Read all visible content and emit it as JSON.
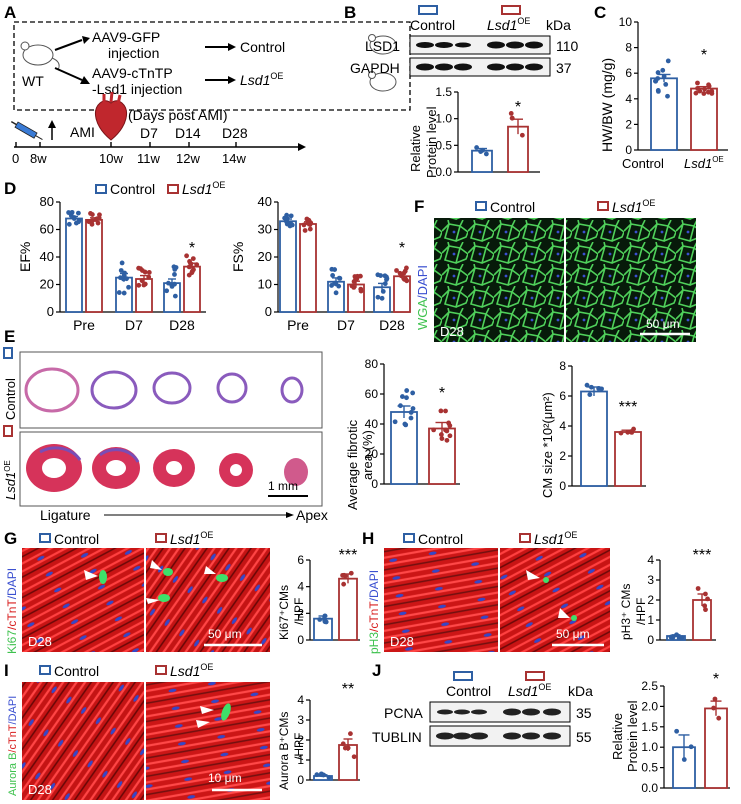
{
  "panels": {
    "A": {
      "letter": "A",
      "wt": "WT",
      "gfp_line1": "AAV9-GFP",
      "gfp_line2": "injection",
      "ctn_line1": "AAV9-cTnTP",
      "ctn_line2": "-Lsd1 injection",
      "control": "Control",
      "lsd1": "Lsd1",
      "oe": "OE",
      "ami": "AMI",
      "days_post": "(Days post AMI)",
      "d7": "D7",
      "d14": "D14",
      "d28": "D28",
      "ticks": [
        "0",
        "8w",
        "10w",
        "11w",
        "12w",
        "14w"
      ]
    },
    "B": {
      "letter": "B",
      "control": "Control",
      "lsd1": "Lsd1",
      "oe": "OE",
      "kda": "kDa",
      "bands": [
        {
          "name": "LSD1",
          "kda": "110"
        },
        {
          "name": "GAPDH",
          "kda": "37"
        }
      ],
      "ylabel1": "Relative",
      "ylabel2": "Protein level",
      "yticks": [
        "0.0",
        "0.5",
        "1.0",
        "1.5"
      ],
      "star": "*"
    },
    "C": {
      "letter": "C",
      "ylabel": "HW/BW (mg/g)",
      "yticks": [
        "0",
        "2",
        "4",
        "6",
        "8",
        "10"
      ],
      "xcats": [
        "Control",
        "Lsd1"
      ],
      "oe": "OE",
      "star": "*"
    },
    "D": {
      "letter": "D",
      "legend_control": "Control",
      "legend_lsd1": "Lsd1",
      "oe": "OE",
      "ef_label": "EF%",
      "fs_label": "FS%",
      "ef_yticks": [
        "0",
        "20",
        "40",
        "60",
        "80"
      ],
      "fs_yticks": [
        "0",
        "10",
        "20",
        "30",
        "40"
      ],
      "xcats": [
        "Pre",
        "D7",
        "D28"
      ],
      "star": "*"
    },
    "E": {
      "letter": "E",
      "row_control": "Control",
      "row_lsd1": "Lsd1",
      "oe": "OE",
      "scale": "1 mm",
      "ligature": "Ligature",
      "apex": "Apex",
      "fib_ylabel1": "Average fibrotic",
      "fib_ylabel2": "area (%)",
      "fib_yticks": [
        "0",
        "20",
        "40",
        "60",
        "80"
      ],
      "star": "*"
    },
    "F": {
      "letter": "F",
      "control": "Control",
      "lsd1": "Lsd1",
      "oe": "OE",
      "wga": "WGA",
      "dapi": "/DAPI",
      "d28": "D28",
      "scale": "50 μm",
      "cm_ylabel": "CM size *10²(μm²)",
      "cm_yticks": [
        "0",
        "2",
        "4",
        "6",
        "8"
      ],
      "stars": "***"
    },
    "G": {
      "letter": "G",
      "control": "Control",
      "lsd1": "Lsd1",
      "oe": "OE",
      "stain_a": "Ki67",
      "stain_b": "/cTnT",
      "stain_c": "/DAPI",
      "d28": "D28",
      "scale": "50 μm",
      "ylabel1": "Ki67⁺CMs",
      "ylabel2": "/HPF",
      "yticks": [
        "0",
        "2",
        "4",
        "6"
      ],
      "stars": "***"
    },
    "H": {
      "letter": "H",
      "control": "Control",
      "lsd1": "Lsd1",
      "oe": "OE",
      "stain_a": "pH3",
      "stain_b": "/cTnT",
      "stain_c": "/DAPI",
      "d28": "D28",
      "scale": "50 μm",
      "ylabel1": "pH3⁺ CMs",
      "ylabel2": "/HPF",
      "yticks": [
        "0",
        "1",
        "2",
        "3",
        "4"
      ],
      "stars": "***"
    },
    "I": {
      "letter": "I",
      "control": "Control",
      "lsd1": "Lsd1",
      "oe": "OE",
      "stain_a": "Aurora B",
      "stain_b": "/cTnT",
      "stain_c": "/DAPI",
      "d28": "D28",
      "scale": "10 μm",
      "ylabel1": "Aurora B⁺CMs",
      "ylabel2": "/HPF",
      "yticks": [
        "0",
        "1",
        "2",
        "3",
        "4"
      ],
      "stars": "**"
    },
    "J": {
      "letter": "J",
      "control": "Control",
      "lsd1": "Lsd1",
      "oe": "OE",
      "kda": "kDa",
      "bands": [
        {
          "name": "PCNA",
          "kda": "35"
        },
        {
          "name": "TUBLIN",
          "kda": "55"
        }
      ],
      "ylabel1": "Relative",
      "ylabel2": "Protein level",
      "yticks": [
        "0.0",
        "0.5",
        "1.0",
        "1.5",
        "2.0",
        "2.5"
      ],
      "star": "*"
    }
  },
  "colors": {
    "control": "#2e5fa3",
    "lsd1": "#a83232",
    "green": "#3ec24e",
    "red": "#d81e1e"
  },
  "chart_data": [
    {
      "type": "bar",
      "title": "",
      "ylabel": "Relative Protein level",
      "categories": [
        "Control",
        "Lsd1 OE"
      ],
      "values": [
        0.4,
        0.85
      ],
      "ylim": [
        0,
        1.5
      ]
    },
    {
      "type": "bar",
      "title": "",
      "ylabel": "HW/BW (mg/g)",
      "categories": [
        "Control",
        "Lsd1 OE"
      ],
      "values": [
        5.6,
        4.8
      ],
      "ylim": [
        0,
        10
      ]
    },
    {
      "type": "bar",
      "ylabel": "EF%",
      "categories": [
        "Pre",
        "D7",
        "D28"
      ],
      "series": [
        {
          "name": "Control",
          "values": [
            68,
            25,
            21
          ]
        },
        {
          "name": "Lsd1 OE",
          "values": [
            67,
            24,
            33
          ]
        }
      ],
      "ylim": [
        0,
        80
      ]
    },
    {
      "type": "bar",
      "ylabel": "FS%",
      "categories": [
        "Pre",
        "D7",
        "D28"
      ],
      "series": [
        {
          "name": "Control",
          "values": [
            33,
            11,
            9
          ]
        },
        {
          "name": "Lsd1 OE",
          "values": [
            32,
            10,
            13
          ]
        }
      ],
      "ylim": [
        0,
        40
      ]
    },
    {
      "type": "bar",
      "ylabel": "Average fibrotic area (%)",
      "categories": [
        "Control",
        "Lsd1 OE"
      ],
      "values": [
        48,
        37
      ],
      "ylim": [
        0,
        80
      ]
    },
    {
      "type": "bar",
      "ylabel": "CM size *10²(μm²)",
      "categories": [
        "Control",
        "Lsd1 OE"
      ],
      "values": [
        6.3,
        3.6
      ],
      "ylim": [
        0,
        8
      ]
    },
    {
      "type": "bar",
      "ylabel": "Ki67⁺CMs /HPF",
      "categories": [
        "Control",
        "Lsd1 OE"
      ],
      "values": [
        1.6,
        4.6
      ],
      "ylim": [
        0,
        6
      ]
    },
    {
      "type": "bar",
      "ylabel": "pH3⁺ CMs /HPF",
      "categories": [
        "Control",
        "Lsd1 OE"
      ],
      "values": [
        0.2,
        2.0
      ],
      "ylim": [
        0,
        4
      ]
    },
    {
      "type": "bar",
      "ylabel": "Aurora B⁺CMs /HPF",
      "categories": [
        "Control",
        "Lsd1 OE"
      ],
      "values": [
        0.2,
        1.75
      ],
      "ylim": [
        0,
        4
      ]
    },
    {
      "type": "bar",
      "ylabel": "Relative Protein level",
      "categories": [
        "Control",
        "Lsd1 OE"
      ],
      "values": [
        1.0,
        1.95
      ],
      "ylim": [
        0,
        2.5
      ]
    }
  ]
}
